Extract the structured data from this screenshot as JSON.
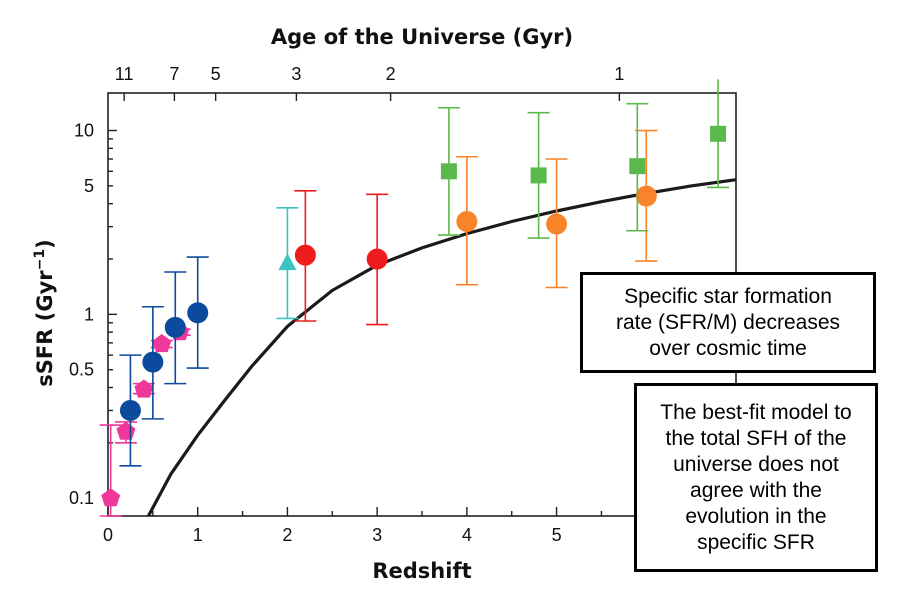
{
  "chart_data": {
    "type": "scatter",
    "title": "",
    "top_axis_label": "Age of the Universe (Gyr)",
    "top_ticks": [
      {
        "label": "11",
        "z": 0.18
      },
      {
        "label": "7",
        "z": 0.74
      },
      {
        "label": "5",
        "z": 1.2
      },
      {
        "label": "3",
        "z": 2.1
      },
      {
        "label": "2",
        "z": 3.15
      },
      {
        "label": "1",
        "z": 5.7
      }
    ],
    "xlabel": "Redshift",
    "ylabel": "sSFR (Gyr",
    "ylabel_sup": "−1",
    "ylabel_close": ")",
    "xlim": [
      0,
      7
    ],
    "ylim": [
      0.08,
      16
    ],
    "yscale": "log",
    "x_ticks": [
      0,
      1,
      2,
      3,
      4,
      5
    ],
    "x_tick_labels": [
      "0",
      "1",
      "2",
      "3",
      "4",
      "5"
    ],
    "y_ticks": [
      0.1,
      0.5,
      1,
      5,
      10
    ],
    "y_tick_labels": [
      "0.1",
      "0.5",
      "1",
      "5",
      "10"
    ],
    "grid": false,
    "series": [
      {
        "marker": "pentagon",
        "color": "#f0389a",
        "points": [
          {
            "x": 0.03,
            "y": 0.1,
            "lo": 0.08,
            "hi": 0.25
          },
          {
            "x": 0.2,
            "y": 0.23,
            "lo": 0.2,
            "hi": 0.26
          },
          {
            "x": 0.4,
            "y": 0.39,
            "lo": 0.37,
            "hi": 0.42
          },
          {
            "x": 0.6,
            "y": 0.69,
            "lo": 0.66,
            "hi": 0.72
          },
          {
            "x": 0.8,
            "y": 0.8,
            "lo": 0.77,
            "hi": 0.83
          }
        ]
      },
      {
        "marker": "circle",
        "color": "#0b4a9c",
        "points": [
          {
            "x": 0.25,
            "y": 0.3,
            "lo": 0.15,
            "hi": 0.6
          },
          {
            "x": 0.5,
            "y": 0.55,
            "lo": 0.27,
            "hi": 1.1
          },
          {
            "x": 0.75,
            "y": 0.85,
            "lo": 0.42,
            "hi": 1.7
          },
          {
            "x": 1.0,
            "y": 1.02,
            "lo": 0.51,
            "hi": 2.05
          }
        ]
      },
      {
        "marker": "triangle",
        "color": "#3cc3c3",
        "points": [
          {
            "x": 2.0,
            "y": 1.9,
            "lo": 0.95,
            "hi": 3.8
          }
        ]
      },
      {
        "marker": "circle",
        "color": "#ee1c1c",
        "points": [
          {
            "x": 2.2,
            "y": 2.1,
            "lo": 0.92,
            "hi": 4.7
          },
          {
            "x": 3.0,
            "y": 2.0,
            "lo": 0.88,
            "hi": 4.5
          }
        ]
      },
      {
        "marker": "circle",
        "color": "#f7832b",
        "points": [
          {
            "x": 4.0,
            "y": 3.2,
            "lo": 1.45,
            "hi": 7.2
          },
          {
            "x": 5.0,
            "y": 3.1,
            "lo": 1.4,
            "hi": 7.0
          },
          {
            "x": 6.0,
            "y": 4.4,
            "lo": 1.95,
            "hi": 10.0
          }
        ]
      },
      {
        "marker": "square",
        "color": "#5bb84a",
        "points": [
          {
            "x": 3.8,
            "y": 6.0,
            "lo": 2.7,
            "hi": 13.3
          },
          {
            "x": 4.8,
            "y": 5.7,
            "lo": 2.6,
            "hi": 12.5
          },
          {
            "x": 5.9,
            "y": 6.4,
            "lo": 2.85,
            "hi": 14.0
          },
          {
            "x": 6.8,
            "y": 9.6,
            "lo": 4.9,
            "hi": 19.0
          }
        ]
      }
    ],
    "model_curve": {
      "color": "#1a1a1a",
      "points": [
        [
          0.45,
          0.08
        ],
        [
          0.7,
          0.135
        ],
        [
          1.0,
          0.22
        ],
        [
          1.3,
          0.34
        ],
        [
          1.6,
          0.52
        ],
        [
          2.0,
          0.86
        ],
        [
          2.5,
          1.35
        ],
        [
          3.0,
          1.85
        ],
        [
          3.5,
          2.3
        ],
        [
          4.0,
          2.75
        ],
        [
          4.5,
          3.2
        ],
        [
          5.0,
          3.65
        ],
        [
          5.5,
          4.1
        ],
        [
          6.0,
          4.55
        ],
        [
          6.5,
          5.0
        ],
        [
          7.0,
          5.4
        ]
      ]
    },
    "annotations": [
      "Specific star formation\nrate (SFR/M) decreases\nover cosmic time",
      "The best-fit model to\nthe total SFH of the\nuniverse does not\nagree with the\nevolution in the\nspecific SFR"
    ]
  }
}
